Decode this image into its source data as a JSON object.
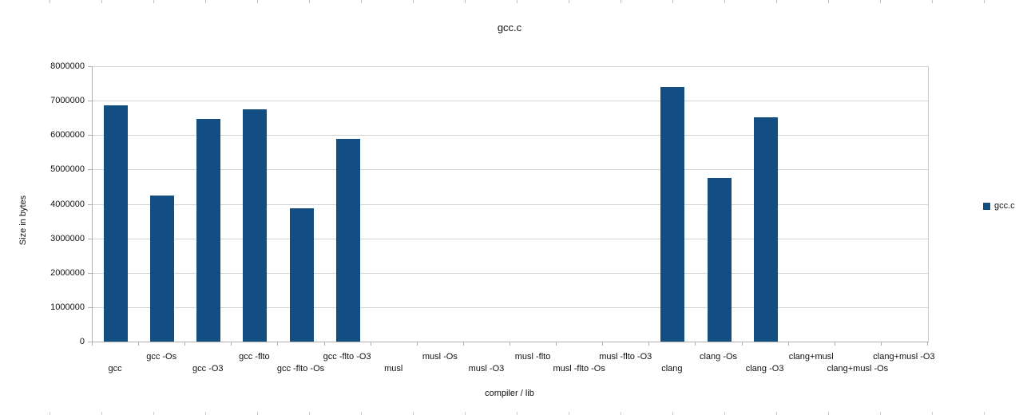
{
  "window": {
    "title": "gcc.c"
  },
  "chart_data": {
    "type": "bar",
    "title": "gcc.c",
    "xlabel": "compiler / lib",
    "ylabel": "Size in bytes",
    "ylim": [
      0,
      8000000
    ],
    "ytick_interval": 1000000,
    "grid": "horizontal",
    "legend_position": "right",
    "categories": [
      "gcc",
      "gcc -Os",
      "gcc -O3",
      "gcc -flto",
      "gcc -flto -Os",
      "gcc -flto -O3",
      "musl",
      "musl -Os",
      "musl -O3",
      "musl -flto",
      "musl -flto -Os",
      "musl -flto -O3",
      "clang",
      "clang -Os",
      "clang -O3",
      "clang+musl",
      "clang+musl -Os",
      "clang+musl -O3"
    ],
    "series": [
      {
        "name": "gcc.c",
        "color": "#134e82",
        "values": [
          6860000,
          4240000,
          6470000,
          6740000,
          3870000,
          5880000,
          0,
          0,
          0,
          0,
          0,
          0,
          7400000,
          4760000,
          6520000,
          0,
          0,
          0
        ]
      }
    ]
  },
  "legend": {
    "label": "gcc.c"
  },
  "colors": {
    "bar": "#134e82",
    "gridline": "#d3d3d3",
    "axis": "#b0b0b0"
  }
}
